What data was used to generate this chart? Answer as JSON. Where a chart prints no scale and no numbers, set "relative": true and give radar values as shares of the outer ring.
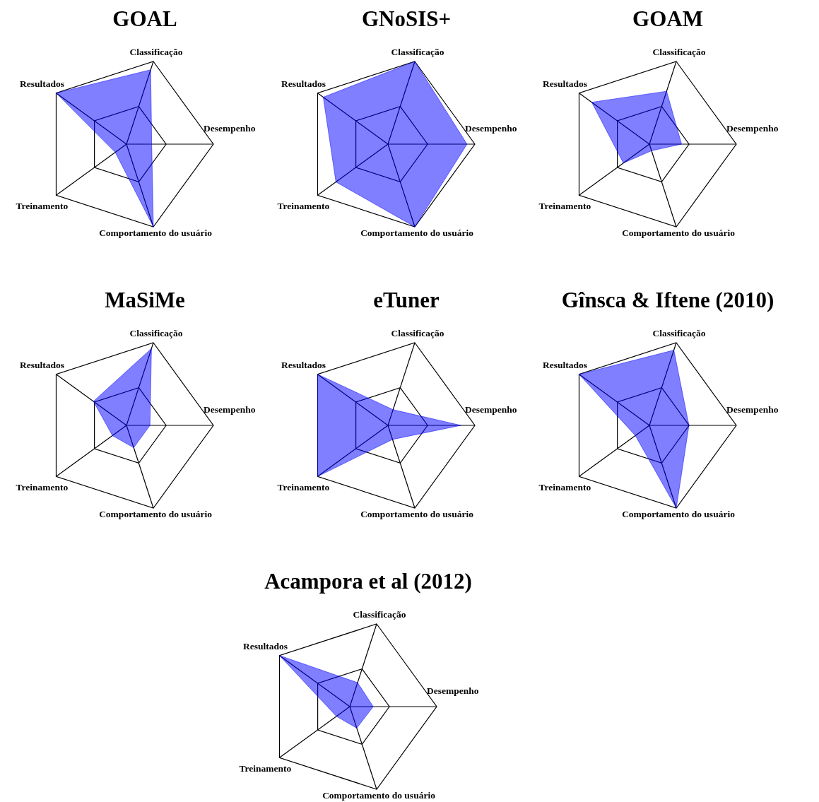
{
  "chart_data": [
    {
      "type": "radar",
      "title": "GOAL",
      "relative": true,
      "categories": [
        "Classificação",
        "Desempenho",
        "Comportamento do usuário",
        "Treinamento",
        "Resultados"
      ],
      "series": [
        {
          "color": "#0000ff",
          "values": [
            0.9,
            0.29,
            1,
            0.16,
            1
          ]
        }
      ]
    },
    {
      "type": "radar",
      "title": "GNoSIS+",
      "relative": true,
      "categories": [
        "Classificação",
        "Desempenho",
        "Comportamento do usuário",
        "Treinamento",
        "Resultados"
      ],
      "series": [
        {
          "color": "#0000ff",
          "values": [
            1,
            0.91,
            1,
            0.74,
            0.92
          ]
        }
      ]
    },
    {
      "type": "radar",
      "title": "GOAM",
      "relative": true,
      "categories": [
        "Classificação",
        "Desempenho",
        "Comportamento do usuário",
        "Treinamento",
        "Resultados"
      ],
      "series": [
        {
          "color": "#0000ff",
          "values": [
            0.64,
            0.37,
            0.08,
            0.37,
            0.82
          ]
        }
      ]
    },
    {
      "type": "radar",
      "title": "MaSiMe",
      "relative": true,
      "categories": [
        "Classificação",
        "Desempenho",
        "Comportamento do usuário",
        "Treinamento",
        "Resultados"
      ],
      "series": [
        {
          "color": "#0000ff",
          "values": [
            0.93,
            0.27,
            0.27,
            0.2,
            0.47
          ]
        }
      ]
    },
    {
      "type": "radar",
      "title": "eTuner",
      "relative": true,
      "categories": [
        "Classificação",
        "Desempenho",
        "Comportamento do usuário",
        "Treinamento",
        "Resultados"
      ],
      "series": [
        {
          "color": "#0000ff",
          "values": [
            0.19,
            0.84,
            0.17,
            1,
            1
          ]
        }
      ]
    },
    {
      "type": "radar",
      "title": "Gînsca & Iftene (2010)",
      "relative": true,
      "categories": [
        "Classificação",
        "Desempenho",
        "Comportamento do usuário",
        "Treinamento",
        "Resultados"
      ],
      "series": [
        {
          "color": "#0000ff",
          "values": [
            0.91,
            0.455,
            1,
            0.2,
            1
          ]
        }
      ]
    },
    {
      "type": "radar",
      "title": "Acampora et al (2012)",
      "relative": true,
      "categories": [
        "Classificação",
        "Desempenho",
        "Comportamento do usuário",
        "Treinamento",
        "Resultados"
      ],
      "series": [
        {
          "color": "#0000ff",
          "values": [
            0.29,
            0.27,
            0.26,
            0.19,
            1
          ]
        }
      ]
    }
  ]
}
